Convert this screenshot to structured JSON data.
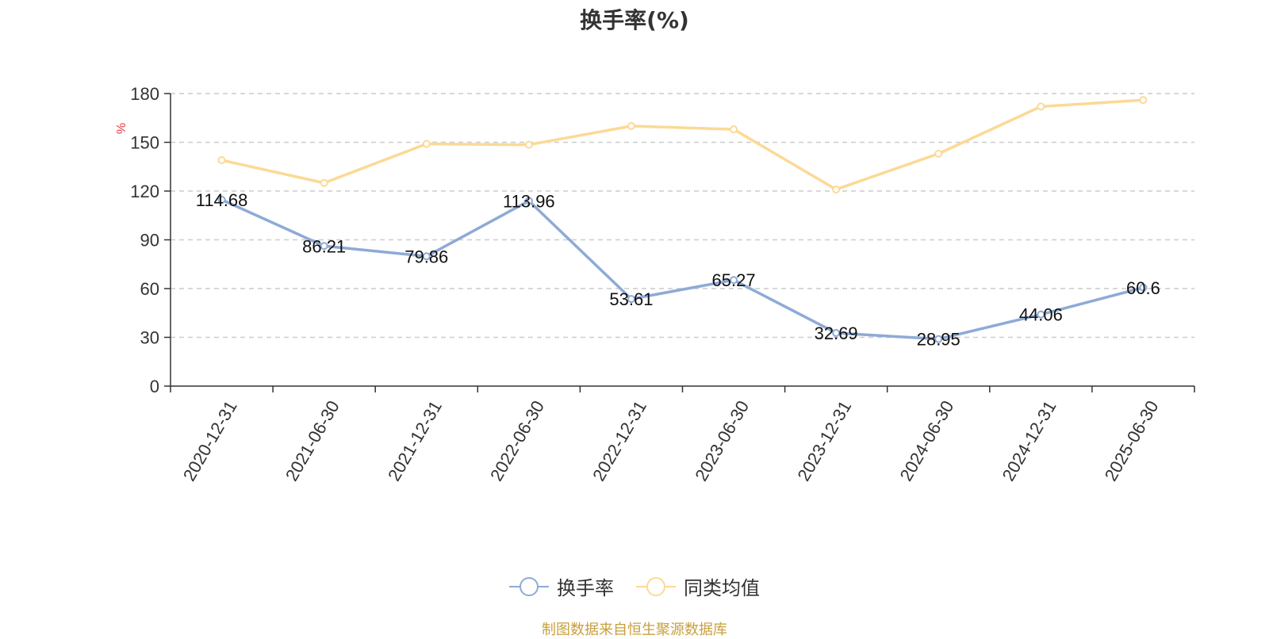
{
  "title": "换手率(%)",
  "source_note": "制图数据来自恒生聚源数据库",
  "colors": {
    "series1": "#8eaad6",
    "series2": "#fcd995",
    "grid": "#cccccc",
    "axis": "#333333",
    "unit": "#e83b3b"
  },
  "chart_data": {
    "type": "line",
    "title": "换手率(%)",
    "ylabel": "%",
    "ylim": [
      0,
      180
    ],
    "yticks": [
      0,
      30,
      60,
      90,
      120,
      150,
      180
    ],
    "grid": true,
    "legend_position": "bottom",
    "categories": [
      "2020-12-31",
      "2021-06-30",
      "2021-12-31",
      "2022-06-30",
      "2022-12-31",
      "2023-06-30",
      "2023-12-31",
      "2024-06-30",
      "2024-12-31",
      "2025-06-30"
    ],
    "series": [
      {
        "name": "换手率",
        "values": [
          114.68,
          86.21,
          79.86,
          113.96,
          53.61,
          65.27,
          32.69,
          28.95,
          44.06,
          60.6
        ],
        "labels": [
          "114.68",
          "86.21",
          "79.86",
          "113.96",
          "53.61",
          "65.27",
          "32.69",
          "28.95",
          "44.06",
          "60.6"
        ]
      },
      {
        "name": "同类均值",
        "values": [
          139,
          125,
          149,
          148.5,
          160,
          158,
          121,
          143,
          172,
          176
        ]
      }
    ]
  }
}
